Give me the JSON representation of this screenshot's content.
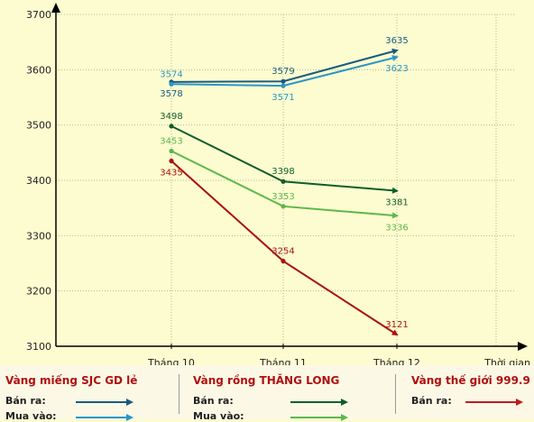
{
  "chart_data": {
    "type": "line",
    "categories": [
      "Tháng 10",
      "Tháng 11",
      "Tháng 12"
    ],
    "xlabel": "Thời gian",
    "ylabel": "",
    "ylim": [
      3100,
      3700
    ],
    "yticks": [
      3100,
      3200,
      3300,
      3400,
      3500,
      3600,
      3700
    ],
    "grid": true,
    "legend_position": "bottom",
    "series": [
      {
        "key": "sjc_sell",
        "values": [
          3578,
          3579,
          3635
        ],
        "color": "#1a5a80",
        "label_pos": [
          "below",
          "above",
          "above"
        ]
      },
      {
        "key": "sjc_buy",
        "values": [
          3574,
          3571,
          3623
        ],
        "color": "#2a96c8",
        "label_pos": [
          "above",
          "below",
          "below"
        ]
      },
      {
        "key": "tl_sell",
        "values": [
          3498,
          3398,
          3381
        ],
        "color": "#0e5e2a",
        "label_pos": [
          "above",
          "above",
          "below"
        ]
      },
      {
        "key": "tl_buy",
        "values": [
          3453,
          3353,
          3336
        ],
        "color": "#5cb84a",
        "label_pos": [
          "above",
          "above",
          "below"
        ]
      },
      {
        "key": "world_sell",
        "values": [
          3435,
          3254,
          3121
        ],
        "color": "#a81212",
        "label_pos": [
          "below",
          "above",
          "above"
        ]
      }
    ]
  },
  "legend": {
    "groups": [
      {
        "title": "Vàng miếng SJC GD lẻ",
        "rows": [
          {
            "label": "Bán ra:",
            "color": "#1a5a80"
          },
          {
            "label": "Mua vào:",
            "color": "#2a96c8"
          }
        ]
      },
      {
        "title": "Vàng rồng THĂNG LONG",
        "rows": [
          {
            "label": "Bán ra:",
            "color": "#0e5e2a"
          },
          {
            "label": "Mua vào:",
            "color": "#5cb84a"
          }
        ]
      },
      {
        "title": "Vàng thế giới 999.9",
        "rows": [
          {
            "label": "Bán ra:",
            "color": "#c41a1a"
          }
        ]
      }
    ]
  }
}
